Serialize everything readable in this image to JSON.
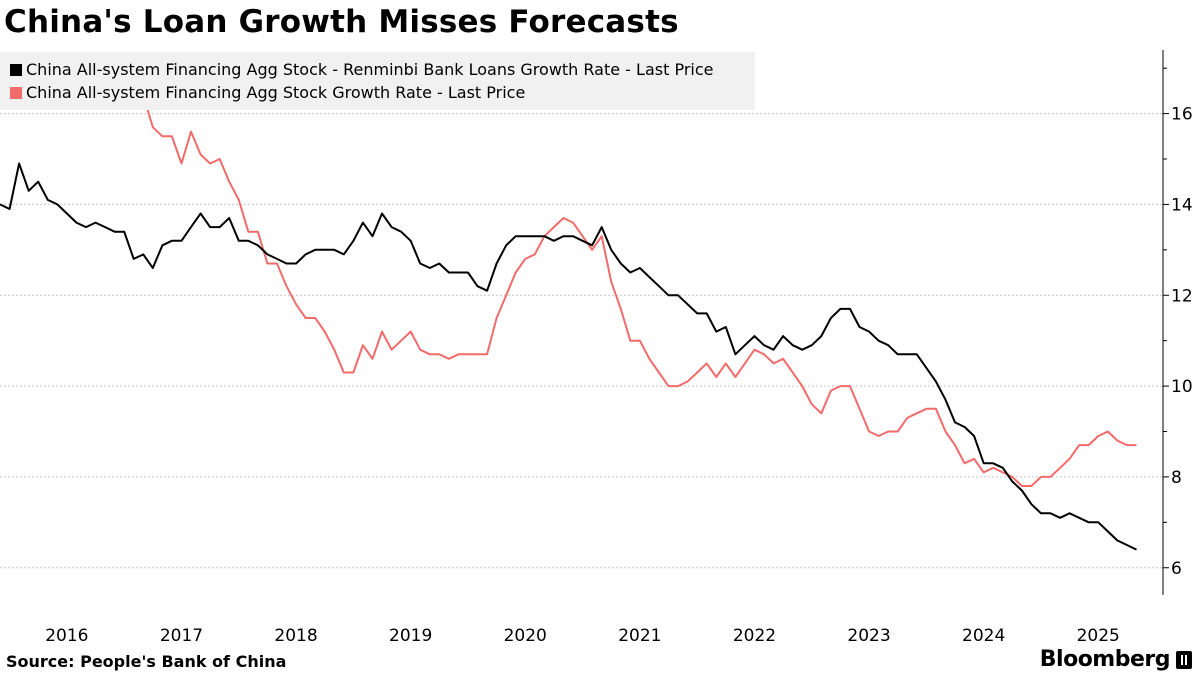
{
  "header": {
    "title": "China's Loan Growth Misses Forecasts"
  },
  "footer": {
    "source": "Source: People's Bank of China",
    "logo": "Bloomberg"
  },
  "chart_data": {
    "type": "line",
    "title": "China's Loan Growth Misses Forecasts",
    "xlabel": "",
    "ylabel": "",
    "x_start": "2015-12",
    "x_frequency": "monthly",
    "x_tick_labels": [
      "2016",
      "2017",
      "2018",
      "2019",
      "2020",
      "2021",
      "2022",
      "2023",
      "2024",
      "2025"
    ],
    "y_ticks": [
      6,
      8,
      10,
      12,
      14,
      16
    ],
    "ylim": [
      5.4,
      17.4
    ],
    "y_axis_side": "right",
    "grid": true,
    "legend_placement": "top-left",
    "series": [
      {
        "name": "China All-system Financing Agg Stock - Renminbi Bank Loans Growth Rate - Last Price",
        "color": "#000000",
        "values": [
          14.0,
          13.9,
          14.9,
          14.3,
          14.5,
          14.1,
          14.0,
          13.8,
          13.6,
          13.5,
          13.6,
          13.5,
          13.4,
          13.4,
          12.8,
          12.9,
          12.6,
          13.1,
          13.2,
          13.2,
          13.5,
          13.8,
          13.5,
          13.5,
          13.7,
          13.2,
          13.2,
          13.1,
          12.9,
          12.8,
          12.7,
          12.7,
          12.9,
          13.0,
          13.0,
          13.0,
          12.9,
          13.2,
          13.6,
          13.3,
          13.8,
          13.5,
          13.4,
          13.2,
          12.7,
          12.6,
          12.7,
          12.5,
          12.5,
          12.5,
          12.2,
          12.1,
          12.7,
          13.1,
          13.3,
          13.3,
          13.3,
          13.3,
          13.2,
          13.3,
          13.3,
          13.2,
          13.1,
          13.5,
          13.0,
          12.7,
          12.5,
          12.6,
          12.4,
          12.2,
          12.0,
          12.0,
          11.8,
          11.6,
          11.6,
          11.2,
          11.3,
          10.7,
          10.9,
          11.1,
          10.9,
          10.8,
          11.1,
          10.9,
          10.8,
          10.9,
          11.1,
          11.5,
          11.7,
          11.7,
          11.3,
          11.2,
          11.0,
          10.9,
          10.7,
          10.7,
          10.7,
          10.4,
          10.1,
          9.7,
          9.2,
          9.1,
          8.9,
          8.3,
          8.3,
          8.2,
          7.9,
          7.7,
          7.4,
          7.2,
          7.2,
          7.1,
          7.2,
          7.1,
          7.0,
          7.0,
          6.8,
          6.6,
          6.5,
          6.4
        ]
      },
      {
        "name": "China All-system Financing Agg Stock Growth Rate - Last Price",
        "color": "#f26b6b",
        "values": [
          null,
          null,
          null,
          null,
          null,
          null,
          null,
          null,
          null,
          null,
          null,
          null,
          null,
          null,
          null,
          16.4,
          15.7,
          15.5,
          15.5,
          14.9,
          15.6,
          15.1,
          14.9,
          15.0,
          14.5,
          14.1,
          13.4,
          13.4,
          12.7,
          12.7,
          12.2,
          11.8,
          11.5,
          11.5,
          11.2,
          10.8,
          10.3,
          10.3,
          10.9,
          10.6,
          11.2,
          10.8,
          11.0,
          11.2,
          10.8,
          10.7,
          10.7,
          10.6,
          10.7,
          10.7,
          10.7,
          10.7,
          11.5,
          12.0,
          12.5,
          12.8,
          12.9,
          13.3,
          13.5,
          13.7,
          13.6,
          13.3,
          13.0,
          13.3,
          12.3,
          11.7,
          11.0,
          11.0,
          10.6,
          10.3,
          10.0,
          10.0,
          10.1,
          10.3,
          10.5,
          10.2,
          10.5,
          10.2,
          10.5,
          10.8,
          10.7,
          10.5,
          10.6,
          10.3,
          10.0,
          9.6,
          9.4,
          9.9,
          10.0,
          10.0,
          9.5,
          9.0,
          8.9,
          9.0,
          9.0,
          9.3,
          9.4,
          9.5,
          9.5,
          9.0,
          8.7,
          8.3,
          8.4,
          8.1,
          8.2,
          8.1,
          8.0,
          7.8,
          7.8,
          8.0,
          8.0,
          8.2,
          8.4,
          8.7,
          8.7,
          8.9,
          9.0,
          8.8,
          8.7,
          8.7
        ]
      }
    ]
  }
}
